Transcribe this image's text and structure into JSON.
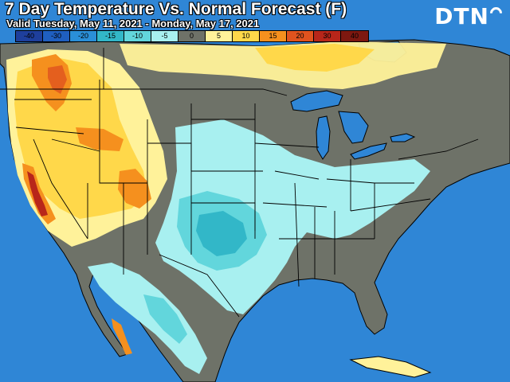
{
  "header": {
    "title": "7 Day Temperature Vs. Normal Forecast (F)",
    "subtitle": "Valid Tuesday, May 11, 2021 - Monday, May 17, 2021"
  },
  "brand": {
    "logo_text": "DTN"
  },
  "legend": {
    "items": [
      {
        "label": "-40",
        "color": "#1e3f9c"
      },
      {
        "label": "-30",
        "color": "#1f5fc0"
      },
      {
        "label": "-20",
        "color": "#2a8fd8"
      },
      {
        "label": "-15",
        "color": "#32b7c8"
      },
      {
        "label": "-10",
        "color": "#62d6dc"
      },
      {
        "label": "-5",
        "color": "#a8f0f0"
      },
      {
        "label": "0",
        "color": "#6e7268"
      },
      {
        "label": "5",
        "color": "#fff29a"
      },
      {
        "label": "10",
        "color": "#ffd84a"
      },
      {
        "label": "15",
        "color": "#f5901e"
      },
      {
        "label": "20",
        "color": "#e0531e"
      },
      {
        "label": "30",
        "color": "#b8261a"
      },
      {
        "label": "40",
        "color": "#7d1810"
      }
    ]
  },
  "map_colors": {
    "water": "#2f86d6",
    "neutral_land": "#6e7268",
    "border": "#000000"
  }
}
